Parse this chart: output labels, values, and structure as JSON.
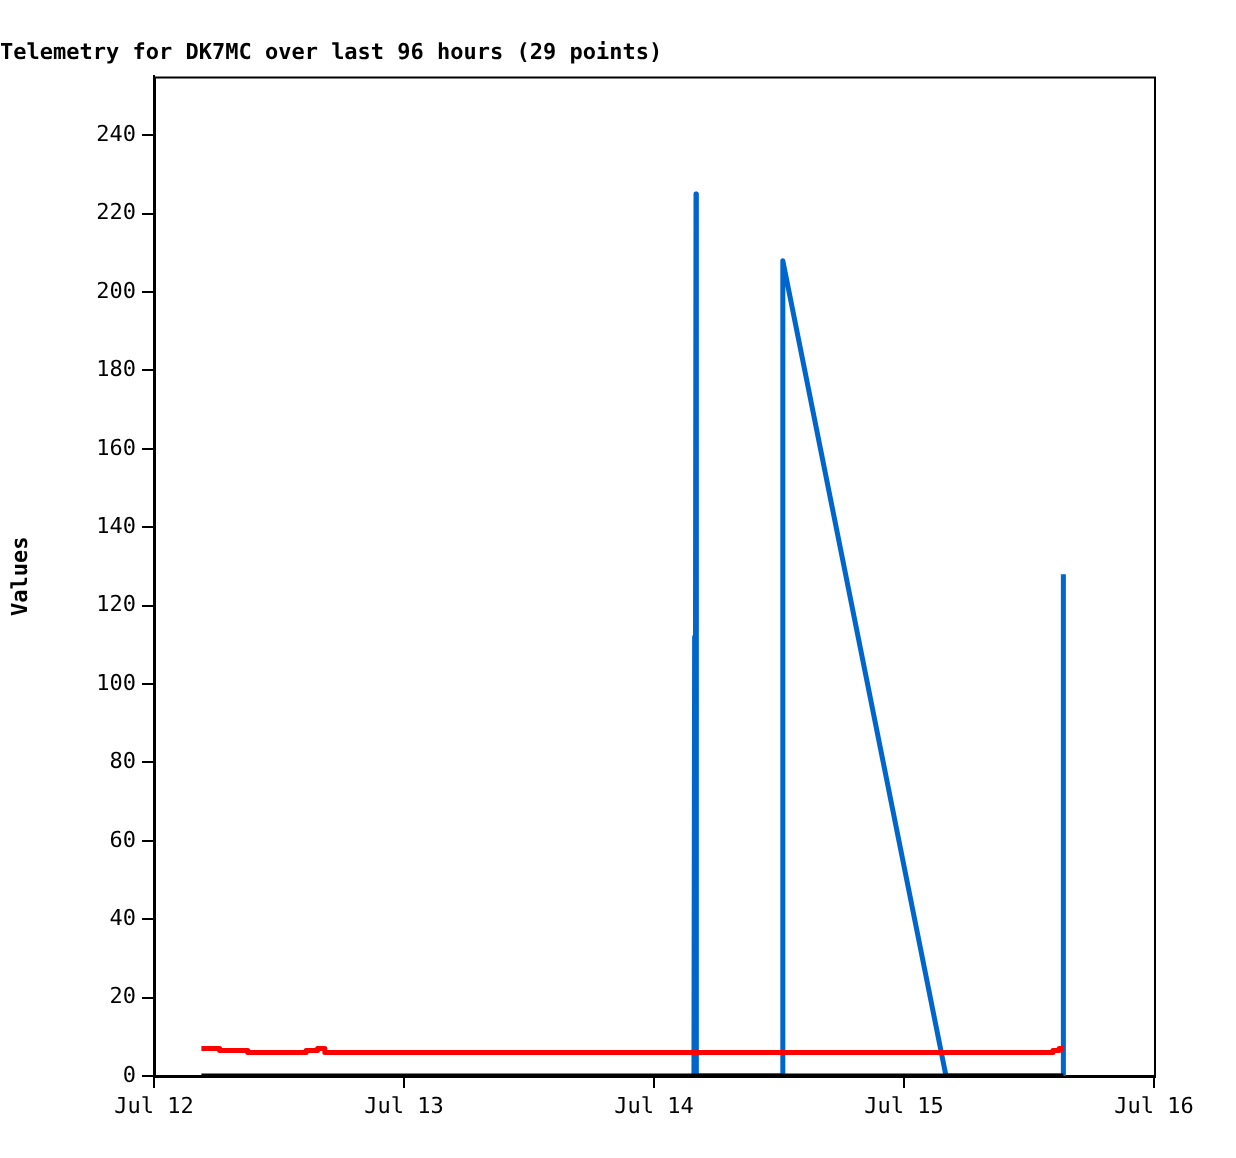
{
  "chart_data": {
    "type": "line",
    "title": "Telemetry for DK7MC over last 96 hours (29 points)",
    "ylabel": "Values",
    "xlim": [
      "--07-12",
      "--07-16"
    ],
    "xticks": [
      {
        "value": "--07-12",
        "label": "Jul 12"
      },
      {
        "value": "--07-13",
        "label": "Jul 13"
      },
      {
        "value": "--07-14",
        "label": "Jul 14"
      },
      {
        "value": "--07-15",
        "label": "Jul 15"
      },
      {
        "value": "--07-16",
        "label": "Jul 16"
      }
    ],
    "ylim": [
      0,
      255
    ],
    "yticks": [
      0,
      20,
      40,
      60,
      80,
      100,
      120,
      140,
      160,
      180,
      200,
      220,
      240
    ],
    "legend": false,
    "marker": "none",
    "series": [
      {
        "color": "#000000",
        "x": [
          "--07-12T04:33",
          "--07-15T15:18"
        ],
        "values": [
          0,
          0
        ]
      },
      {
        "color": "#ff0000",
        "x": [
          "--07-12T04:33",
          "--07-12T06:18",
          "--07-12T06:18",
          "--07-12T09:00",
          "--07-12T09:00",
          "--07-12T14:36",
          "--07-12T14:36",
          "--07-12T15:42",
          "--07-12T15:42",
          "--07-12T16:24",
          "--07-12T16:24",
          "--07-15T14:18",
          "--07-15T14:18",
          "--07-15T14:54",
          "--07-15T14:54",
          "--07-15T15:18"
        ],
        "values": [
          7,
          7,
          6.5,
          6.5,
          6,
          6,
          6.5,
          6.5,
          7,
          7,
          6,
          6,
          6.5,
          6.5,
          7,
          7
        ]
      },
      {
        "color": "#0066cc",
        "x": [
          "--07-14T03:50",
          "--07-14T03:54",
          "--07-14T03:56",
          "--07-14T04:02",
          "--07-14T04:04",
          "--07-14T12:20",
          "--07-14T12:22",
          "--07-15T04:02",
          "--07-15T15:16",
          "--07-15T15:18"
        ],
        "values": [
          0,
          112,
          0,
          225,
          0,
          0,
          208,
          0,
          0,
          128
        ]
      }
    ]
  }
}
